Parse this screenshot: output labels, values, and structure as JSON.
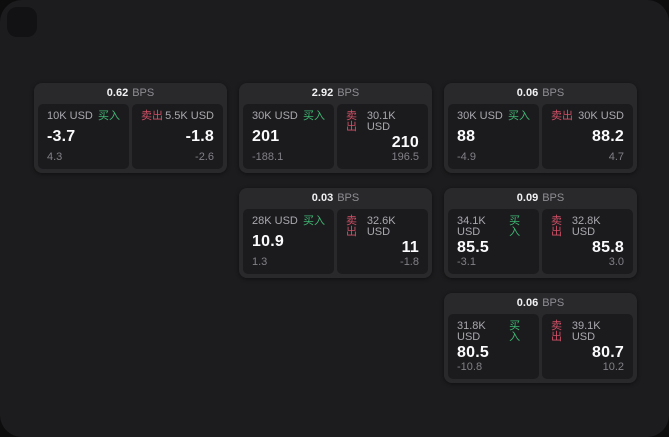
{
  "labels": {
    "bps_unit": "BPS",
    "buy": "买入",
    "sell": "卖出"
  },
  "colors": {
    "buy": "#40b673",
    "sell": "#cf5066",
    "page_bg": "#1c1c1e",
    "card_bg": "#29292c",
    "panel_bg": "#1b1b1e"
  },
  "cards": [
    {
      "bps": "0.62",
      "buy": {
        "notional": "10K USD",
        "price": "-3.7",
        "sub": "4.3"
      },
      "sell": {
        "notional": "5.5K USD",
        "price": "-1.8",
        "sub": "-2.6"
      }
    },
    {
      "bps": "2.92",
      "buy": {
        "notional": "30K USD",
        "price": "201",
        "sub": "-188.1"
      },
      "sell": {
        "notional": "30.1K USD",
        "price": "210",
        "sub": "196.5"
      }
    },
    {
      "bps": "0.06",
      "buy": {
        "notional": "30K USD",
        "price": "88",
        "sub": "-4.9"
      },
      "sell": {
        "notional": "30K USD",
        "price": "88.2",
        "sub": "4.7"
      }
    },
    {
      "bps": "0.03",
      "buy": {
        "notional": "28K USD",
        "price": "10.9",
        "sub": "1.3"
      },
      "sell": {
        "notional": "32.6K USD",
        "price": "11",
        "sub": "-1.8"
      }
    },
    {
      "bps": "0.09",
      "buy": {
        "notional": "34.1K USD",
        "price": "85.5",
        "sub": "-3.1"
      },
      "sell": {
        "notional": "32.8K USD",
        "price": "85.8",
        "sub": "3.0"
      }
    },
    {
      "bps": "0.06",
      "buy": {
        "notional": "31.8K USD",
        "price": "80.5",
        "sub": "-10.8"
      },
      "sell": {
        "notional": "39.1K USD",
        "price": "80.7",
        "sub": "10.2"
      }
    }
  ]
}
